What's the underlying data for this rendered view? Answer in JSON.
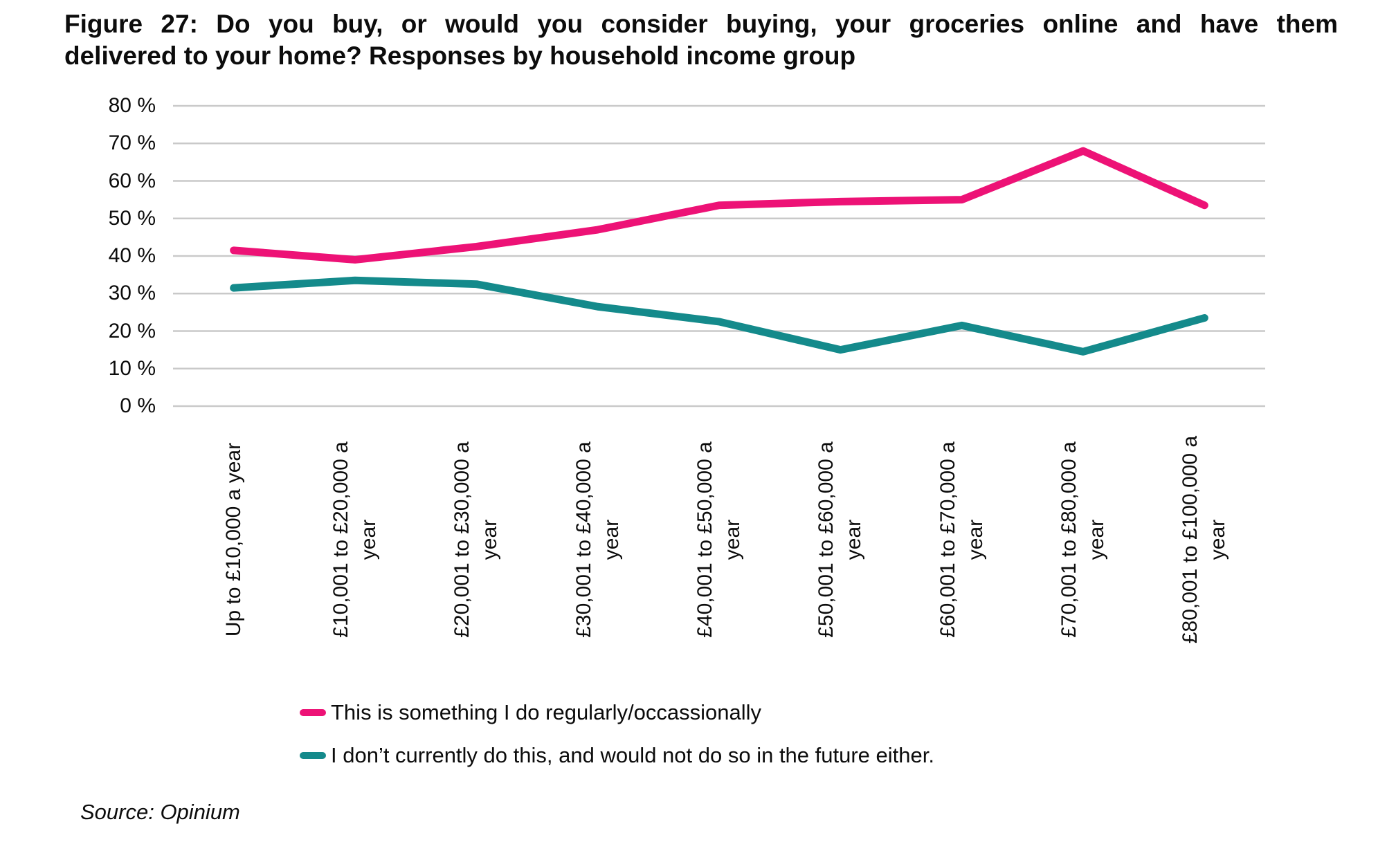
{
  "title": {
    "line1": "Figure 27: Do you buy, or would you consider buying, your groceries online and have them",
    "line2": "delivered to your home? Responses by household income group"
  },
  "source": "Source: Opinium",
  "colors": {
    "gridline": "#C9C9C9",
    "pink": "#ED1276",
    "teal": "#148A8B"
  },
  "chart_data": {
    "type": "line",
    "title": "Figure 27: Do you buy, or would you consider buying, your groceries online and have them delivered to your home? Responses by household income group",
    "categories": [
      "Up to £10,000 a year",
      "£10,001 to £20,000 a year",
      "£20,001 to £30,000 a year",
      "£30,001 to £40,000 a year",
      "£40,001 to £50,000 a year",
      "£50,001 to £60,000 a year",
      "£60,001 to £70,000 a year",
      "£70,001 to £80,000 a year",
      "£80,001 to £100,000 a year"
    ],
    "series": [
      {
        "name": "This is something I do regularly/occassionally",
        "color": "#ED1276",
        "values": [
          41.5,
          39,
          42.5,
          47,
          53.5,
          54.5,
          55,
          68,
          53.5
        ]
      },
      {
        "name": "I don’t currently do this, and would not do so in the future either.",
        "color": "#148A8B",
        "values": [
          31.5,
          33.5,
          32.5,
          26.5,
          22.5,
          15,
          21.5,
          14.5,
          23.5
        ]
      }
    ],
    "xlabel": "",
    "ylabel": "",
    "y_axis": {
      "min": 0,
      "max": 80,
      "step": 10,
      "tick_labels": [
        "0 %",
        "10 %",
        "20 %",
        "30 %",
        "40 %",
        "50 %",
        "60 %",
        "70 %",
        "80 %"
      ]
    },
    "grid": true,
    "legend_position": "bottom",
    "x_tick_rotation_degrees": 90
  }
}
